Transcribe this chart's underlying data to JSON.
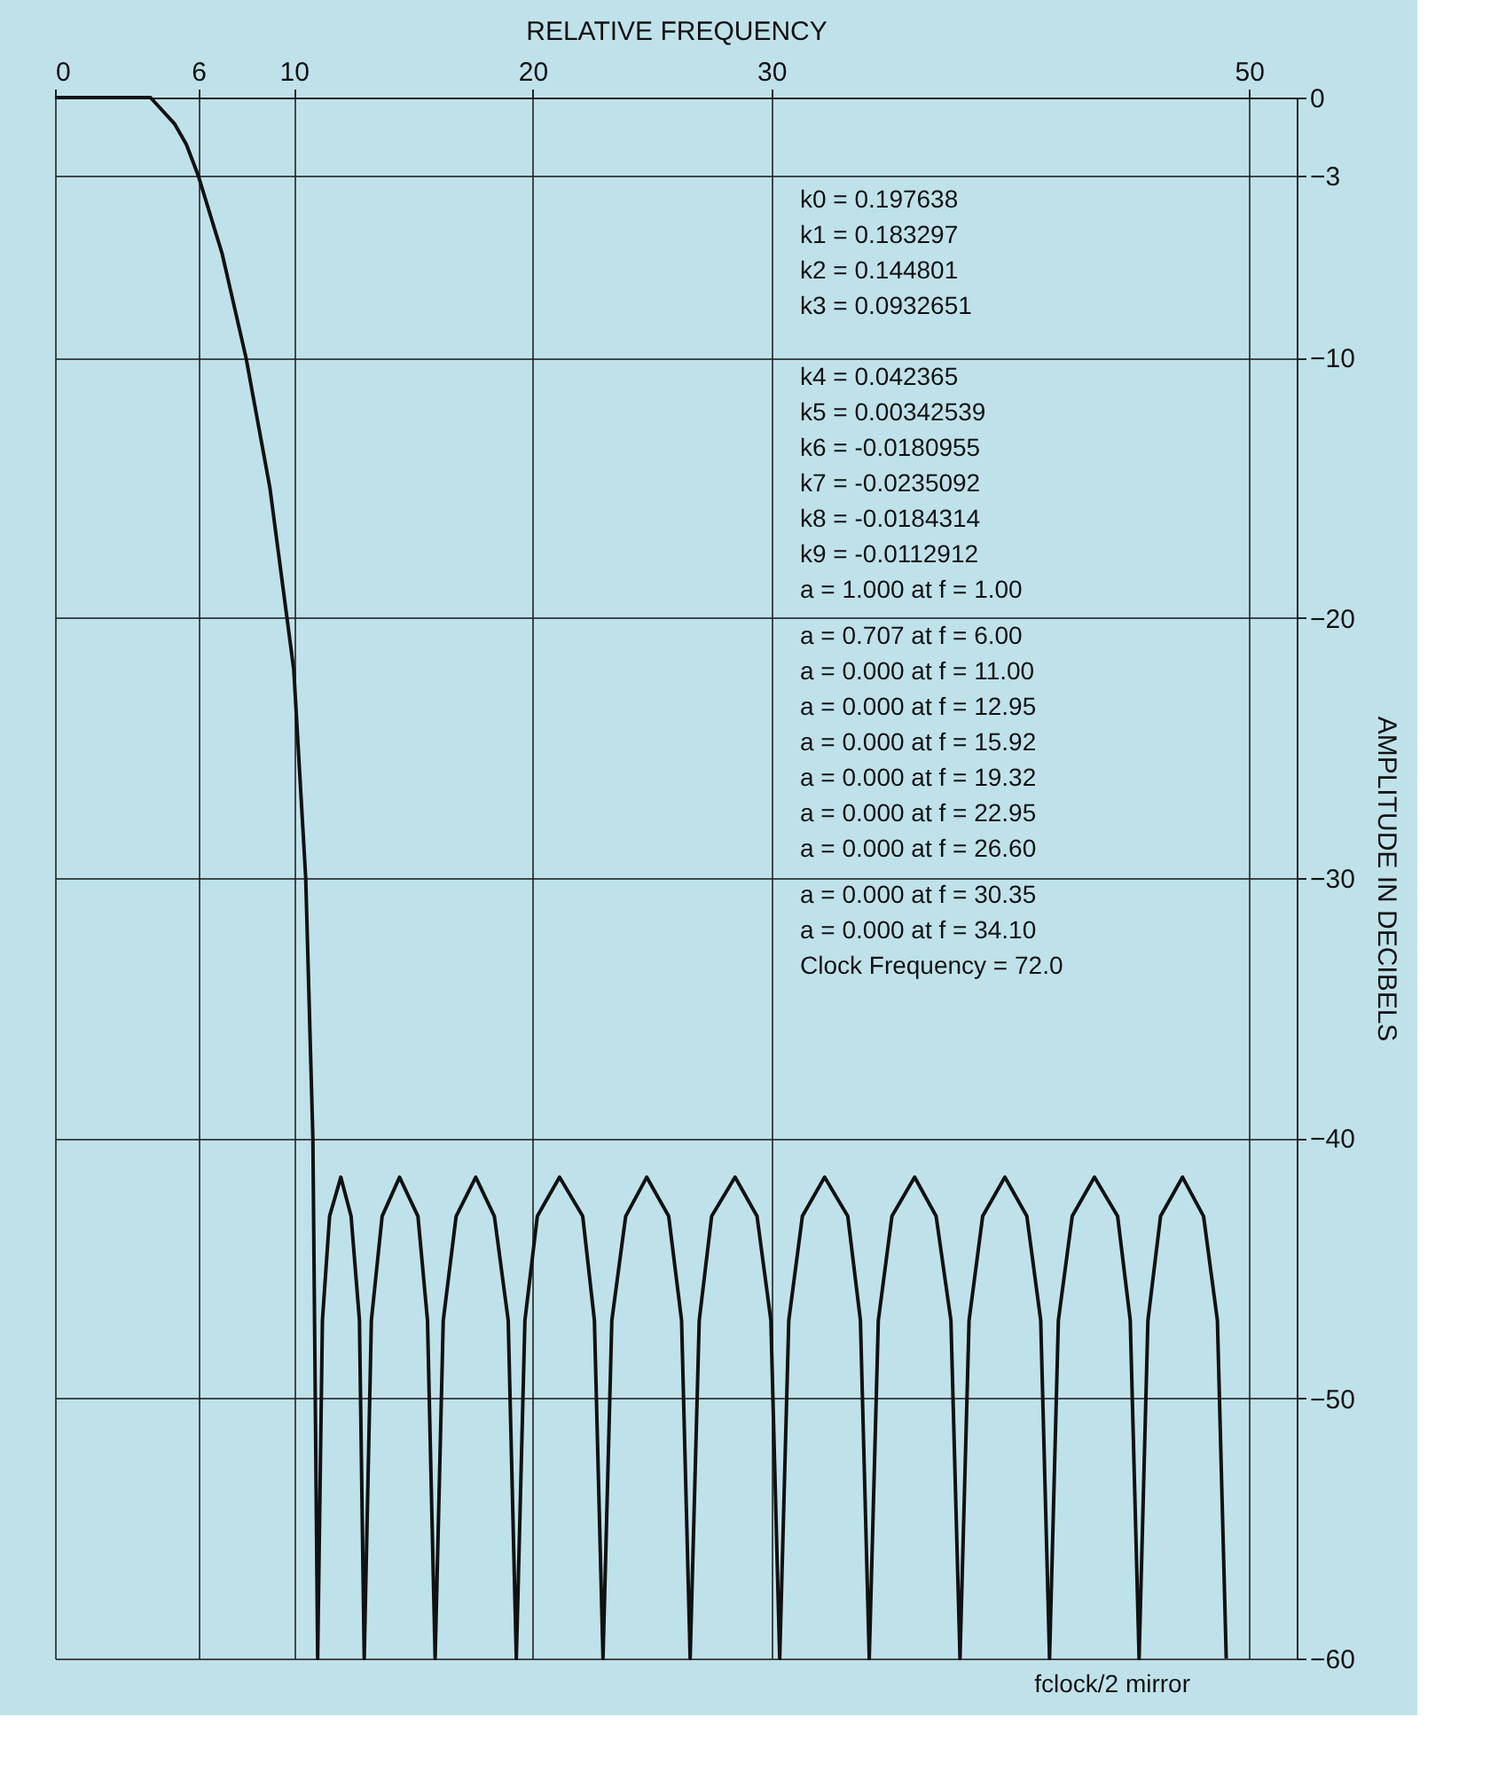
{
  "chart_data": {
    "type": "line",
    "xlabel": "RELATIVE FREQUENCY",
    "ylabel": "AMPLITUDE IN DECIBELS",
    "xlim": [
      0,
      52
    ],
    "xticks": [
      0,
      6,
      10,
      20,
      30,
      50
    ],
    "ylim": [
      -60,
      0
    ],
    "yticks": [
      0,
      -3,
      -10,
      -20,
      -30,
      -40,
      -50,
      -60
    ],
    "grid": true,
    "marker": "none",
    "line_style": "solid",
    "series": [
      {
        "color": "#111111",
        "x": [
          0,
          1,
          2,
          3,
          4,
          5,
          5.5,
          6,
          7,
          8,
          9,
          10,
          10.5,
          10.8,
          11,
          11.2,
          11.5,
          11.97,
          12.4,
          12.75,
          12.95,
          13.25,
          13.7,
          14.43,
          15.2,
          15.6,
          15.92,
          16.26,
          16.8,
          17.62,
          18.4,
          18.98,
          19.32,
          19.68,
          20.2,
          21.13,
          22.1,
          22.59,
          22.95,
          23.32,
          23.9,
          24.78,
          25.7,
          26.24,
          26.6,
          26.98,
          27.5,
          28.48,
          29.4,
          29.98,
          30.35,
          30.73,
          31.3,
          32.23,
          33.2,
          33.73,
          34.1,
          34.48,
          35.05,
          36,
          36.9,
          37.52,
          37.9,
          38.28,
          38.85,
          39.78,
          40.7,
          41.28,
          41.65,
          42.02,
          42.6,
          43.53,
          44.5,
          45.03,
          45.4,
          45.77,
          46.3,
          47.22,
          48.1,
          48.68,
          49.05
        ],
        "values": [
          0,
          0,
          0,
          0,
          0,
          -1,
          -1.8,
          -3,
          -6,
          -10,
          -15,
          -22,
          -30,
          -40,
          -60,
          -47,
          -43,
          -41.5,
          -43,
          -47,
          -60,
          -47,
          -43,
          -41.5,
          -43,
          -47,
          -60,
          -47,
          -43,
          -41.5,
          -43,
          -47,
          -60,
          -47,
          -43,
          -41.5,
          -43,
          -47,
          -60,
          -47,
          -43,
          -41.5,
          -43,
          -47,
          -60,
          -47,
          -43,
          -41.5,
          -43,
          -47,
          -60,
          -47,
          -43,
          -41.5,
          -43,
          -47,
          -60,
          -47,
          -43,
          -41.5,
          -43,
          -47,
          -60,
          -47,
          -43,
          -41.5,
          -43,
          -47,
          -60,
          -47,
          -43,
          -41.5,
          -43,
          -47,
          -60,
          -47,
          -43,
          -41.5,
          -43,
          -47,
          -60
        ]
      }
    ],
    "annotations": [
      "k0 = 0.197638",
      "k1 = 0.183297",
      "k2 = 0.144801",
      "k3 = 0.0932651",
      "k4 = 0.042365",
      "k5 = 0.00342539",
      "k6 = -0.0180955",
      "k7 = -0.0235092",
      "k8 = -0.0184314",
      "k9 = -0.0112912",
      "a = 1.000 at f =   1.00",
      "a = 0.707 at f =   6.00",
      "a = 0.000 at f = 11.00",
      "a = 0.000 at f = 12.95",
      "a = 0.000 at f = 15.92",
      "a = 0.000 at f = 19.32",
      "a = 0.000 at f = 22.95",
      "a = 0.000 at f = 26.60",
      "a = 0.000 at f = 30.35",
      "a = 0.000 at f = 34.10",
      "Clock Frequency = 72.0",
      "fclock/2 mirror"
    ]
  }
}
